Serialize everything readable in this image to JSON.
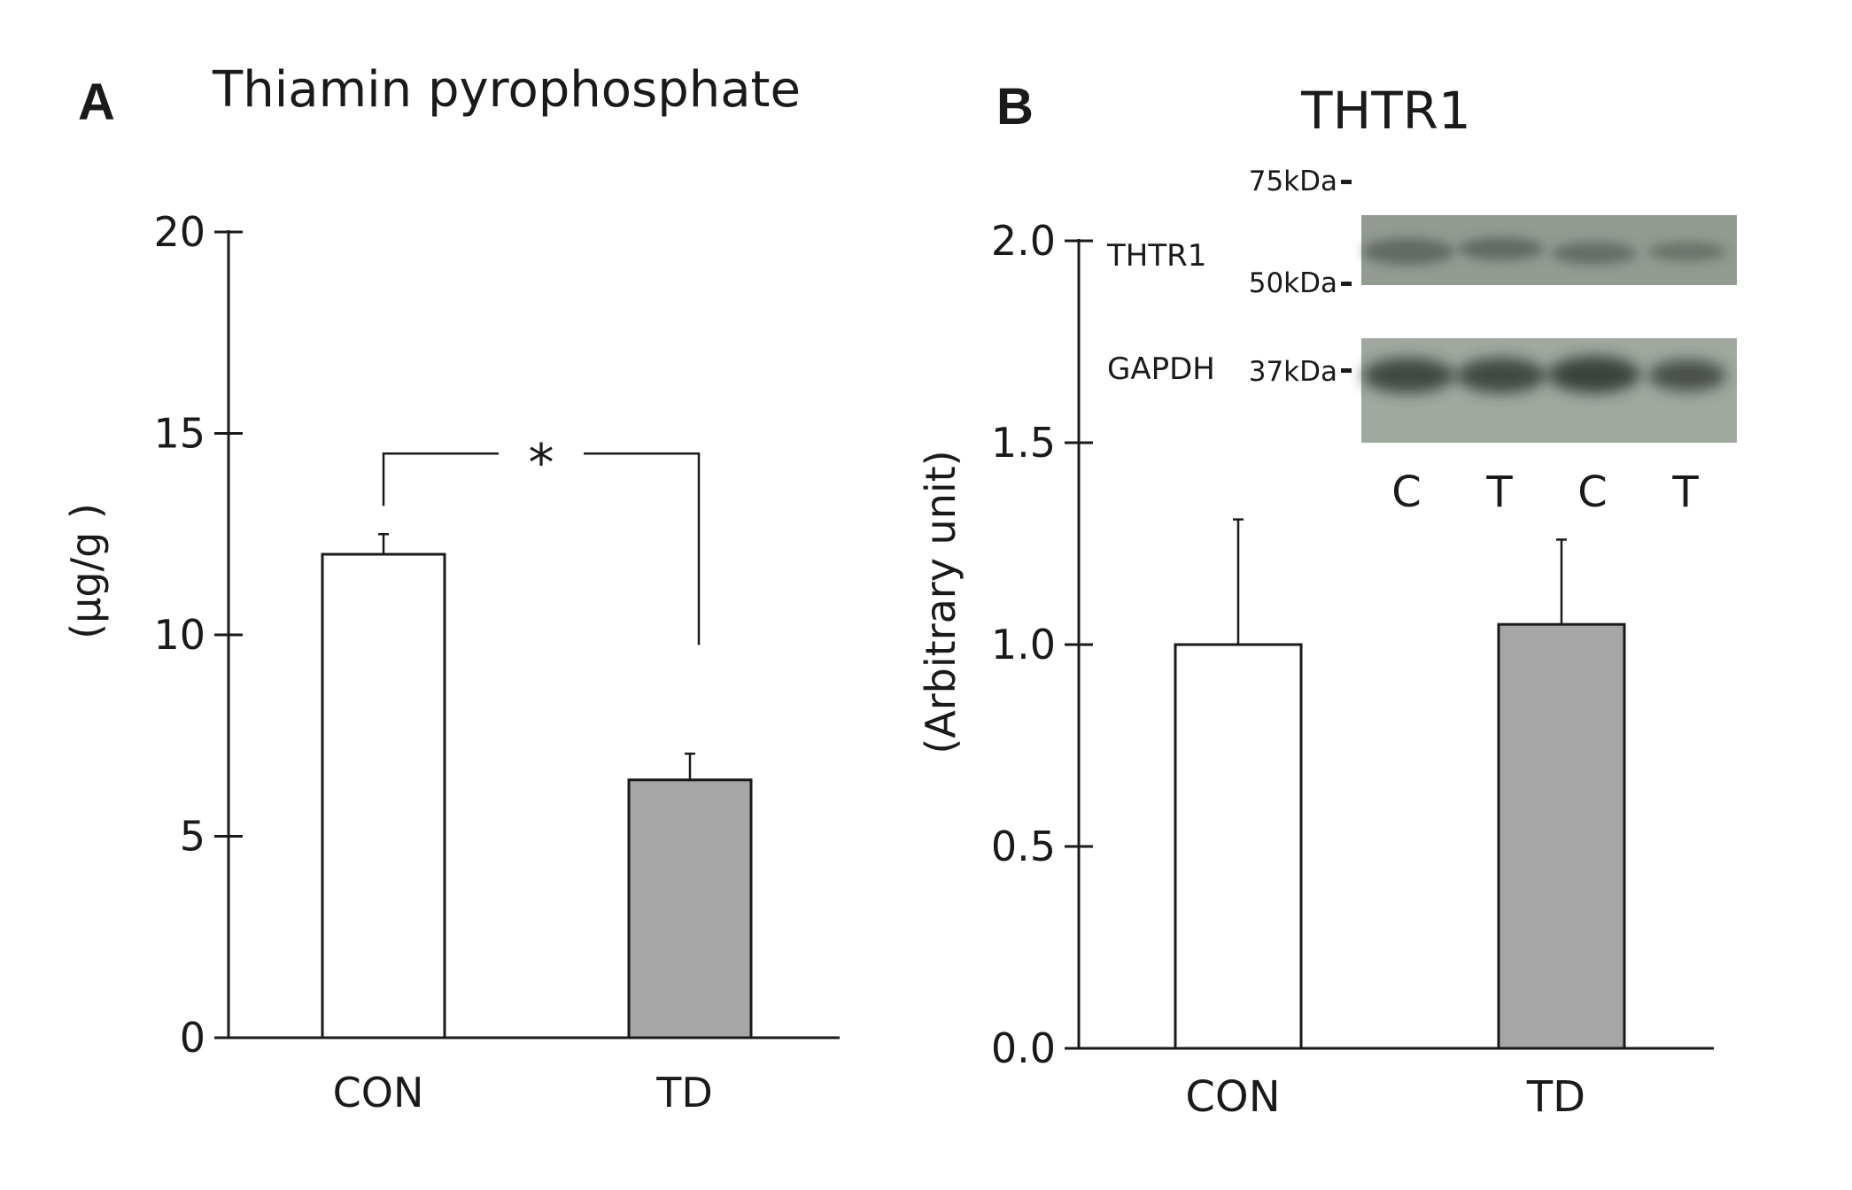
{
  "chart_data": [
    {
      "panel": "A",
      "type": "bar",
      "title": "Thiamin pyrophosphate",
      "xlabel": "",
      "ylabel": "(μg/g )",
      "categories": [
        "CON",
        "TD"
      ],
      "values": [
        12.0,
        6.4
      ],
      "errors": [
        0.5,
        0.65
      ],
      "colors": [
        "#ffffff",
        "#a6a6a6"
      ],
      "ylim": [
        0,
        20
      ],
      "yticks": [
        "0",
        "5",
        "10",
        "15",
        "20"
      ],
      "significance": "*",
      "grid": false
    },
    {
      "panel": "B",
      "type": "bar",
      "title": "THTR1",
      "xlabel": "",
      "ylabel": "(Arbitrary unit)",
      "categories": [
        "CON",
        "TD"
      ],
      "values": [
        1.0,
        1.05
      ],
      "errors": [
        0.31,
        0.21
      ],
      "colors": [
        "#ffffff",
        "#a6a6a6"
      ],
      "ylim": [
        0,
        2.0
      ],
      "yticks": [
        "0.0",
        "0.5",
        "1.0",
        "1.5",
        "2.0"
      ],
      "grid": false,
      "blot": {
        "rows": [
          "THTR1",
          "GAPDH"
        ],
        "markers": [
          "75kDa",
          "50kDa",
          "37kDa"
        ],
        "lanes": [
          "C",
          "T",
          "C",
          "T"
        ]
      }
    }
  ]
}
